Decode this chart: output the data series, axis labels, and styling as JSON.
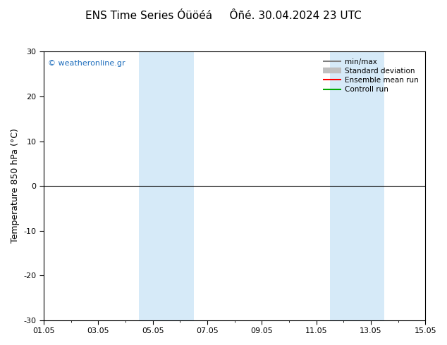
{
  "title": "ENS Time Series Óüöéá     Ôñé. 30.04.2024 23 UTC",
  "ylabel": "Temperature 850 hPa (°C)",
  "ylim": [
    -30,
    30
  ],
  "yticks": [
    -30,
    -20,
    -10,
    0,
    10,
    20,
    30
  ],
  "xtick_labels": [
    "01.05",
    "03.05",
    "05.05",
    "07.05",
    "09.05",
    "11.05",
    "13.05",
    "15.05"
  ],
  "xtick_positions": [
    0,
    2,
    4,
    6,
    8,
    10,
    12,
    14
  ],
  "xlim": [
    0,
    14
  ],
  "shaded_bands": [
    {
      "x_start": 3.5,
      "x_end": 5.5,
      "color": "#d6eaf8"
    },
    {
      "x_start": 10.5,
      "x_end": 12.5,
      "color": "#d6eaf8"
    }
  ],
  "hline_y": 0,
  "hline_color": "#000000",
  "watermark": "© weatheronline.gr",
  "watermark_color": "#1a6bbb",
  "legend_items": [
    {
      "label": "min/max",
      "color": "#808080",
      "lw": 1.5
    },
    {
      "label": "Standard deviation",
      "color": "#c0c0c0",
      "lw": 6
    },
    {
      "label": "Ensemble mean run",
      "color": "#ff0000",
      "lw": 1.5
    },
    {
      "label": "Controll run",
      "color": "#00aa00",
      "lw": 1.5
    }
  ],
  "bg_color": "#ffffff",
  "plot_bg_color": "#ffffff",
  "border_color": "#000000",
  "title_fontsize": 11,
  "axis_fontsize": 9,
  "tick_fontsize": 8
}
